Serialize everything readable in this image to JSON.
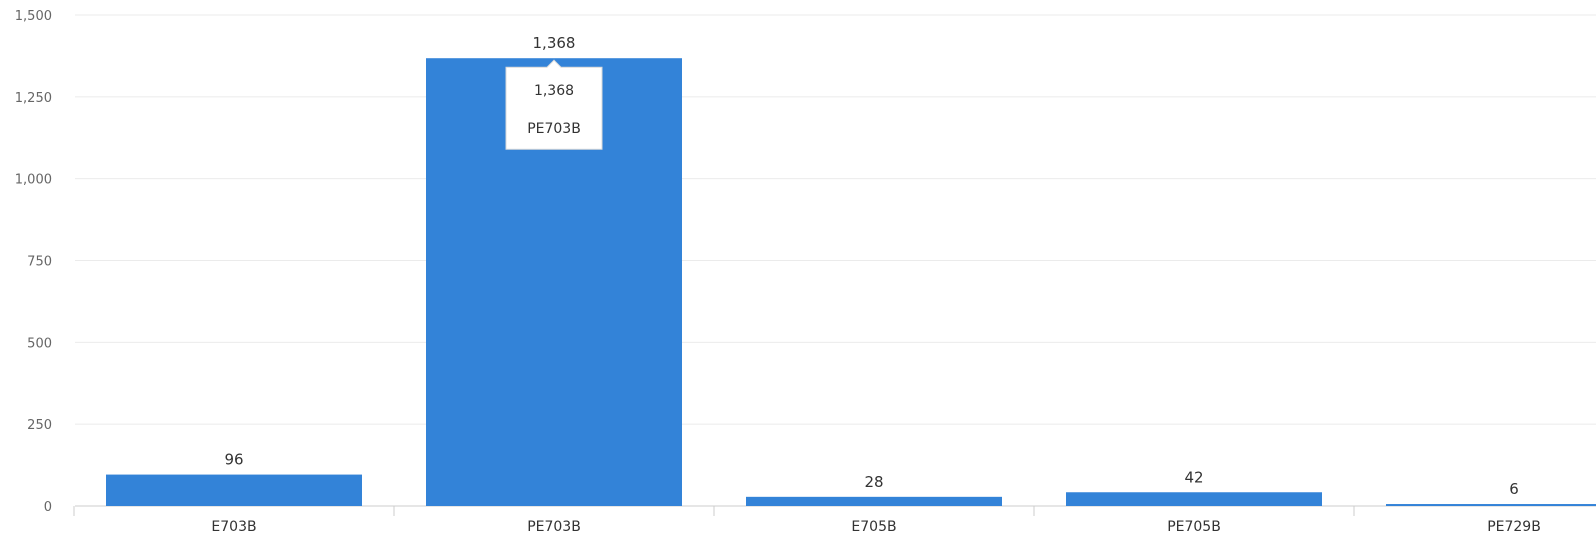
{
  "chart_data": {
    "type": "bar",
    "categories": [
      "E703B",
      "PE703B",
      "E705B",
      "PE705B",
      "PE729B"
    ],
    "values": [
      96,
      1368,
      28,
      42,
      6
    ],
    "data_labels": [
      "96",
      "1,368",
      "28",
      "42",
      "6"
    ],
    "ylim": [
      0,
      1500
    ],
    "y_ticks": [
      0,
      250,
      500,
      750,
      1000,
      1250,
      1500
    ],
    "y_tick_labels": [
      "0",
      "250",
      "500",
      "750",
      "1,000",
      "1,250",
      "1,500"
    ],
    "grid": true,
    "bar_color": "#3383d8",
    "tooltip": {
      "category_index": 1,
      "value_label": "1,368",
      "category_label": "PE703B"
    }
  }
}
